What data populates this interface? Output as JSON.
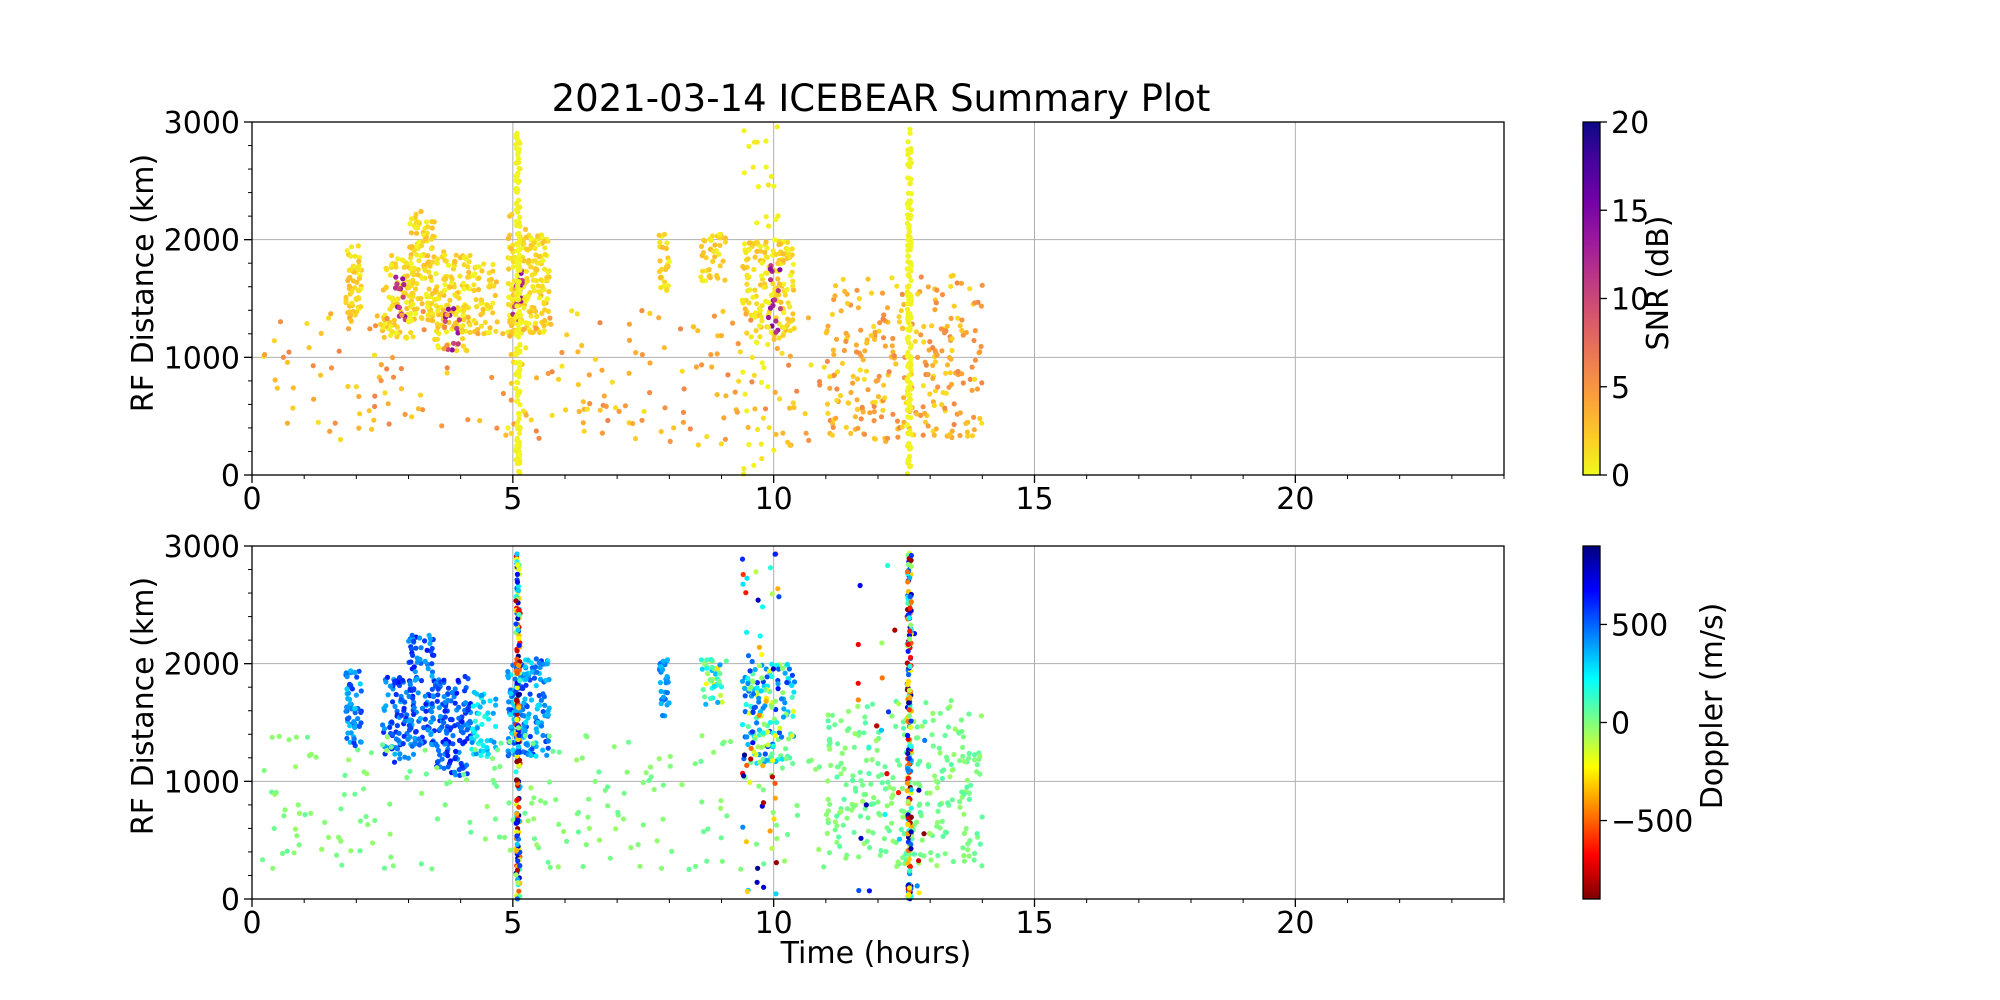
{
  "chart_data": [
    {
      "type": "scatter",
      "title": "2021-03-14 ICEBEAR Summary Plot",
      "xlabel": "",
      "ylabel": "RF Distance (km)",
      "xlim": [
        0,
        24
      ],
      "ylim": [
        0,
        3000
      ],
      "xticks": [
        0,
        5,
        10,
        15,
        20
      ],
      "xtick_labels": [
        "0",
        "5",
        "10",
        "15",
        "20"
      ],
      "yticks": [
        0,
        1000,
        2000,
        3000
      ],
      "ytick_labels": [
        "0",
        "1000",
        "2000",
        "3000"
      ],
      "grid": true,
      "colorbar": {
        "label": "SNR (dB)",
        "range": [
          0,
          20
        ],
        "ticks": [
          0,
          5,
          10,
          15,
          20
        ],
        "tick_labels": [
          "0",
          "5",
          "10",
          "15",
          "20"
        ],
        "colormap": "plasma_r",
        "colors": [
          "#f0f921",
          "#fdca26",
          "#fb9f3a",
          "#ed7953",
          "#d8576b",
          "#bd3786",
          "#9c179e",
          "#7201a8",
          "#46039f",
          "#0d0887"
        ]
      },
      "clusters": [
        {
          "x": [
            1.8,
            2.1
          ],
          "y": [
            1300,
            1950
          ],
          "n": 60,
          "c": [
            0,
            3
          ]
        },
        {
          "x": [
            2.5,
            3.1
          ],
          "y": [
            1150,
            1900
          ],
          "n": 90,
          "c": [
            0,
            3
          ]
        },
        {
          "x": [
            2.75,
            2.95
          ],
          "y": [
            1250,
            1700
          ],
          "n": 14,
          "c": [
            10,
            15
          ]
        },
        {
          "x": [
            3.0,
            3.5
          ],
          "y": [
            1300,
            2250
          ],
          "n": 110,
          "c": [
            0,
            3
          ]
        },
        {
          "x": [
            3.5,
            4.2
          ],
          "y": [
            1050,
            1900
          ],
          "n": 130,
          "c": [
            0,
            3
          ]
        },
        {
          "x": [
            3.7,
            4.0
          ],
          "y": [
            1050,
            1450
          ],
          "n": 14,
          "c": [
            10,
            15
          ]
        },
        {
          "x": [
            4.2,
            4.7
          ],
          "y": [
            1200,
            1800
          ],
          "n": 50,
          "c": [
            0,
            3
          ]
        },
        {
          "x": [
            4.9,
            5.7
          ],
          "y": [
            1200,
            2050
          ],
          "n": 180,
          "c": [
            0,
            3
          ]
        },
        {
          "x": [
            5.0,
            5.2
          ],
          "y": [
            1300,
            1800
          ],
          "n": 18,
          "c": [
            10,
            15
          ]
        },
        {
          "x": [
            7.8,
            8.0
          ],
          "y": [
            1550,
            2050
          ],
          "n": 30,
          "c": [
            0,
            3
          ]
        },
        {
          "x": [
            8.6,
            9.1
          ],
          "y": [
            1650,
            2050
          ],
          "n": 40,
          "c": [
            0,
            3
          ]
        },
        {
          "x": [
            9.4,
            10.4
          ],
          "y": [
            1150,
            2000
          ],
          "n": 150,
          "c": [
            0,
            3
          ]
        },
        {
          "x": [
            9.9,
            10.15
          ],
          "y": [
            1200,
            1800
          ],
          "n": 16,
          "c": [
            10,
            15
          ]
        },
        {
          "x": [
            0.2,
            14.0
          ],
          "y": [
            250,
            1400
          ],
          "n": 280,
          "c": [
            1,
            6
          ]
        },
        {
          "x": [
            11.0,
            14.0
          ],
          "y": [
            300,
            1700
          ],
          "n": 220,
          "c": [
            1,
            6
          ]
        },
        {
          "x": [
            9.4,
            10.1
          ],
          "y": [
            0,
            3000
          ],
          "n": 50,
          "c": [
            0,
            1
          ]
        },
        {
          "x": [
            4.9,
            5.3
          ],
          "y": [
            0,
            2700
          ],
          "n": 20,
          "c": [
            0,
            4
          ]
        }
      ],
      "stripes": [
        {
          "x": 5.1,
          "y": [
            0,
            2950
          ],
          "n": 160,
          "c": [
            0,
            0.5
          ]
        },
        {
          "x": 12.6,
          "y": [
            0,
            2950
          ],
          "n": 160,
          "c": [
            0,
            0.5
          ]
        }
      ]
    },
    {
      "type": "scatter",
      "title": "",
      "xlabel": "Time (hours)",
      "ylabel": "RF Distance (km)",
      "xlim": [
        0,
        24
      ],
      "ylim": [
        0,
        3000
      ],
      "xticks": [
        0,
        5,
        10,
        15,
        20
      ],
      "xtick_labels": [
        "0",
        "5",
        "10",
        "15",
        "20"
      ],
      "yticks": [
        0,
        1000,
        2000,
        3000
      ],
      "ytick_labels": [
        "0",
        "1000",
        "2000",
        "3000"
      ],
      "grid": true,
      "colorbar": {
        "label": "Doppler (m/s)",
        "range": [
          -900,
          900
        ],
        "ticks": [
          -500,
          0,
          500
        ],
        "tick_labels": [
          "−500",
          "0",
          "500"
        ],
        "colormap": "jet_r",
        "colors": [
          "#800000",
          "#ff0000",
          "#ff8000",
          "#ffff00",
          "#80ff80",
          "#00ffff",
          "#0080ff",
          "#0000ff",
          "#000080"
        ]
      },
      "clusters": [
        {
          "x": [
            1.8,
            2.1
          ],
          "y": [
            1300,
            1950
          ],
          "n": 60,
          "c": [
            300,
            600
          ]
        },
        {
          "x": [
            2.5,
            3.1
          ],
          "y": [
            1150,
            1900
          ],
          "n": 90,
          "c": [
            350,
            650
          ]
        },
        {
          "x": [
            3.0,
            3.5
          ],
          "y": [
            1300,
            2250
          ],
          "n": 110,
          "c": [
            350,
            650
          ]
        },
        {
          "x": [
            3.5,
            4.2
          ],
          "y": [
            1050,
            1900
          ],
          "n": 130,
          "c": [
            400,
            650
          ]
        },
        {
          "x": [
            4.2,
            4.7
          ],
          "y": [
            1200,
            1800
          ],
          "n": 50,
          "c": [
            150,
            450
          ]
        },
        {
          "x": [
            4.9,
            5.7
          ],
          "y": [
            1200,
            2050
          ],
          "n": 180,
          "c": [
            250,
            600
          ]
        },
        {
          "x": [
            7.8,
            8.0
          ],
          "y": [
            1550,
            2050
          ],
          "n": 30,
          "c": [
            300,
            500
          ]
        },
        {
          "x": [
            8.6,
            9.1
          ],
          "y": [
            1650,
            2050
          ],
          "n": 40,
          "c": [
            -300,
            400
          ]
        },
        {
          "x": [
            9.4,
            10.4
          ],
          "y": [
            1150,
            2000
          ],
          "n": 150,
          "c": [
            -200,
            600
          ]
        },
        {
          "x": [
            0.2,
            14.0
          ],
          "y": [
            250,
            1400
          ],
          "n": 280,
          "c": [
            -50,
            50
          ]
        },
        {
          "x": [
            11.0,
            14.0
          ],
          "y": [
            300,
            1700
          ],
          "n": 220,
          "c": [
            -50,
            80
          ]
        },
        {
          "x": [
            9.4,
            10.1
          ],
          "y": [
            0,
            3000
          ],
          "n": 60,
          "c": [
            -900,
            900
          ]
        },
        {
          "x": [
            11.5,
            13.0
          ],
          "y": [
            0,
            2900
          ],
          "n": 30,
          "c": [
            -900,
            900
          ]
        }
      ],
      "stripes": [
        {
          "x": 5.1,
          "y": [
            0,
            2950
          ],
          "n": 200,
          "c": [
            -900,
            900
          ]
        },
        {
          "x": 12.6,
          "y": [
            0,
            2950
          ],
          "n": 200,
          "c": [
            -900,
            900
          ]
        }
      ]
    }
  ]
}
